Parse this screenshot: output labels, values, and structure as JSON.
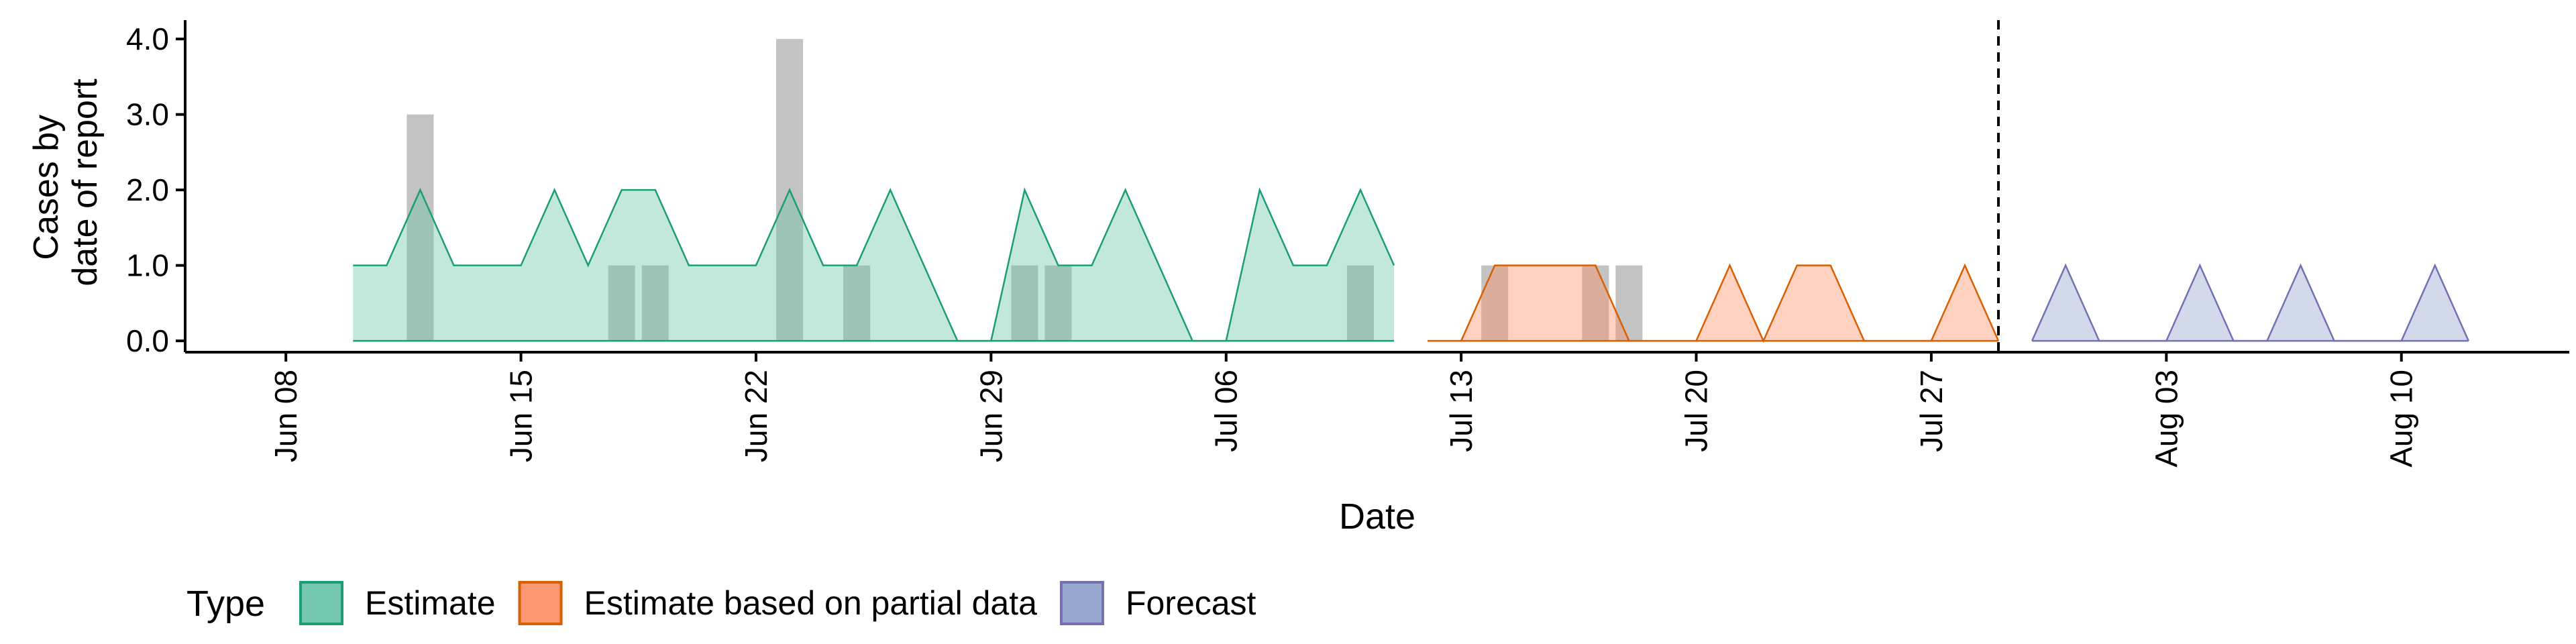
{
  "chart_data": {
    "type": "area",
    "title": "",
    "xlabel": "Date",
    "ylabel_lines": [
      "Cases by",
      "date of report"
    ],
    "x_start": "2020-06-08",
    "xlim": [
      "2020-06-05",
      "2020-08-15"
    ],
    "ylim": [
      -0.15,
      4.25
    ],
    "grid": false,
    "x_ticks": [
      {
        "date": "2020-06-08",
        "label": "Jun 08"
      },
      {
        "date": "2020-06-15",
        "label": "Jun 15"
      },
      {
        "date": "2020-06-22",
        "label": "Jun 22"
      },
      {
        "date": "2020-06-29",
        "label": "Jun 29"
      },
      {
        "date": "2020-07-06",
        "label": "Jul 06"
      },
      {
        "date": "2020-07-13",
        "label": "Jul 13"
      },
      {
        "date": "2020-07-20",
        "label": "Jul 20"
      },
      {
        "date": "2020-07-27",
        "label": "Jul 27"
      },
      {
        "date": "2020-08-03",
        "label": "Aug 03"
      },
      {
        "date": "2020-08-10",
        "label": "Aug 10"
      }
    ],
    "y_ticks": [
      {
        "value": 0,
        "label": "0.0"
      },
      {
        "value": 1,
        "label": "1.0"
      },
      {
        "value": 2,
        "label": "2.0"
      },
      {
        "value": 3,
        "label": "3.0"
      },
      {
        "value": 4,
        "label": "4.0"
      }
    ],
    "observed_cases": {
      "color": "#a9a9a9",
      "points": [
        {
          "date": "2020-06-12",
          "value": 3
        },
        {
          "date": "2020-06-18",
          "value": 1
        },
        {
          "date": "2020-06-19",
          "value": 1
        },
        {
          "date": "2020-06-23",
          "value": 4
        },
        {
          "date": "2020-06-25",
          "value": 1
        },
        {
          "date": "2020-06-30",
          "value": 1
        },
        {
          "date": "2020-07-01",
          "value": 1
        },
        {
          "date": "2020-07-10",
          "value": 1
        },
        {
          "date": "2020-07-14",
          "value": 1
        },
        {
          "date": "2020-07-17",
          "value": 1
        },
        {
          "date": "2020-07-18",
          "value": 1
        }
      ]
    },
    "forecast_start": "2020-07-29",
    "series": [
      {
        "name": "Estimate",
        "color": "#1b9e77",
        "fill": "#66c2a5",
        "points": [
          [
            "2020-06-10",
            1
          ],
          [
            "2020-06-11",
            1
          ],
          [
            "2020-06-12",
            2
          ],
          [
            "2020-06-13",
            1
          ],
          [
            "2020-06-14",
            1
          ],
          [
            "2020-06-15",
            1
          ],
          [
            "2020-06-16",
            2
          ],
          [
            "2020-06-17",
            1
          ],
          [
            "2020-06-18",
            2
          ],
          [
            "2020-06-19",
            2
          ],
          [
            "2020-06-20",
            1
          ],
          [
            "2020-06-21",
            1
          ],
          [
            "2020-06-22",
            1
          ],
          [
            "2020-06-23",
            2
          ],
          [
            "2020-06-24",
            1
          ],
          [
            "2020-06-25",
            1
          ],
          [
            "2020-06-26",
            2
          ],
          [
            "2020-06-27",
            1
          ],
          [
            "2020-06-28",
            0
          ],
          [
            "2020-06-29",
            0
          ],
          [
            "2020-06-30",
            2
          ],
          [
            "2020-07-01",
            1
          ],
          [
            "2020-07-02",
            1
          ],
          [
            "2020-07-03",
            2
          ],
          [
            "2020-07-04",
            1
          ],
          [
            "2020-07-05",
            0
          ],
          [
            "2020-07-06",
            0
          ],
          [
            "2020-07-07",
            2
          ],
          [
            "2020-07-08",
            1
          ],
          [
            "2020-07-09",
            1
          ],
          [
            "2020-07-10",
            2
          ],
          [
            "2020-07-11",
            1
          ]
        ]
      },
      {
        "name": "Estimate based on partial data",
        "color": "#d95f02",
        "fill": "#fc8d62",
        "points": [
          [
            "2020-07-12",
            0
          ],
          [
            "2020-07-13",
            0
          ],
          [
            "2020-07-14",
            1
          ],
          [
            "2020-07-15",
            1
          ],
          [
            "2020-07-16",
            1
          ],
          [
            "2020-07-17",
            1
          ],
          [
            "2020-07-18",
            0
          ],
          [
            "2020-07-19",
            0
          ],
          [
            "2020-07-20",
            0
          ],
          [
            "2020-07-21",
            1
          ],
          [
            "2020-07-22",
            0
          ],
          [
            "2020-07-23",
            1
          ],
          [
            "2020-07-24",
            1
          ],
          [
            "2020-07-25",
            0
          ],
          [
            "2020-07-26",
            0
          ],
          [
            "2020-07-27",
            0
          ],
          [
            "2020-07-28",
            1
          ],
          [
            "2020-07-29",
            0
          ]
        ]
      },
      {
        "name": "Forecast",
        "color": "#7570b3",
        "fill": "#8da0cb",
        "points": [
          [
            "2020-07-30",
            0
          ],
          [
            "2020-07-31",
            1
          ],
          [
            "2020-08-01",
            0
          ],
          [
            "2020-08-02",
            0
          ],
          [
            "2020-08-03",
            0
          ],
          [
            "2020-08-04",
            1
          ],
          [
            "2020-08-05",
            0
          ],
          [
            "2020-08-06",
            0
          ],
          [
            "2020-08-07",
            1
          ],
          [
            "2020-08-08",
            0
          ],
          [
            "2020-08-09",
            0
          ],
          [
            "2020-08-10",
            0
          ],
          [
            "2020-08-11",
            1
          ],
          [
            "2020-08-12",
            0
          ]
        ]
      }
    ],
    "legend": {
      "title": "Type",
      "position": "bottom",
      "items": [
        {
          "label": "Estimate",
          "fill": "#66c2a5",
          "stroke": "#1b9e77"
        },
        {
          "label": "Estimate based on partial data",
          "fill": "#fc8d62",
          "stroke": "#d95f02"
        },
        {
          "label": "Forecast",
          "fill": "#8da0cb",
          "stroke": "#7570b3"
        }
      ]
    }
  }
}
